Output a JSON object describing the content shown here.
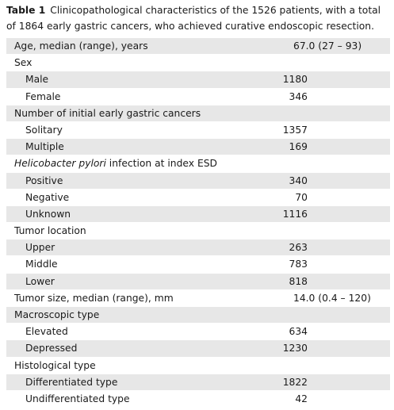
{
  "caption": {
    "number": "Table 1",
    "text": "Clinicopathological characteristics of the 1526 patients, with a total of 1864 early gastric cancers, who achieved curative endoscopic resection."
  },
  "table": {
    "rows": [
      {
        "label": "Age, median (range), years",
        "value": "67.0 (27 – 93)"
      },
      {
        "label": "Sex",
        "items": [
          {
            "label": "Male",
            "value": 1180
          },
          {
            "label": "Female",
            "value": 346
          }
        ]
      },
      {
        "label": "Number of initial early gastric cancers",
        "items": [
          {
            "label": "Solitary",
            "value": 1357
          },
          {
            "label": "Multiple",
            "value": 169
          }
        ]
      },
      {
        "label_italic": "Helicobacter pylori",
        "label": " infection at index ESD",
        "items": [
          {
            "label": "Positive",
            "value": 340
          },
          {
            "label": "Negative",
            "value": 70
          },
          {
            "label": "Unknown",
            "value": 1116
          }
        ]
      },
      {
        "label": "Tumor location",
        "items": [
          {
            "label": "Upper",
            "value": 263
          },
          {
            "label": "Middle",
            "value": 783
          },
          {
            "label": "Lower",
            "value": 818
          }
        ]
      },
      {
        "label": "Tumor size, median (range), mm",
        "value": "14.0 (0.4 – 120)"
      },
      {
        "label": "Macroscopic type",
        "items": [
          {
            "label": "Elevated",
            "value": 634
          },
          {
            "label": "Depressed",
            "value": 1230
          }
        ]
      },
      {
        "label": "Histological type",
        "items": [
          {
            "label": "Differentiated type",
            "value": 1822
          },
          {
            "label": "Undifferentiated type",
            "value": 42
          }
        ]
      }
    ]
  }
}
